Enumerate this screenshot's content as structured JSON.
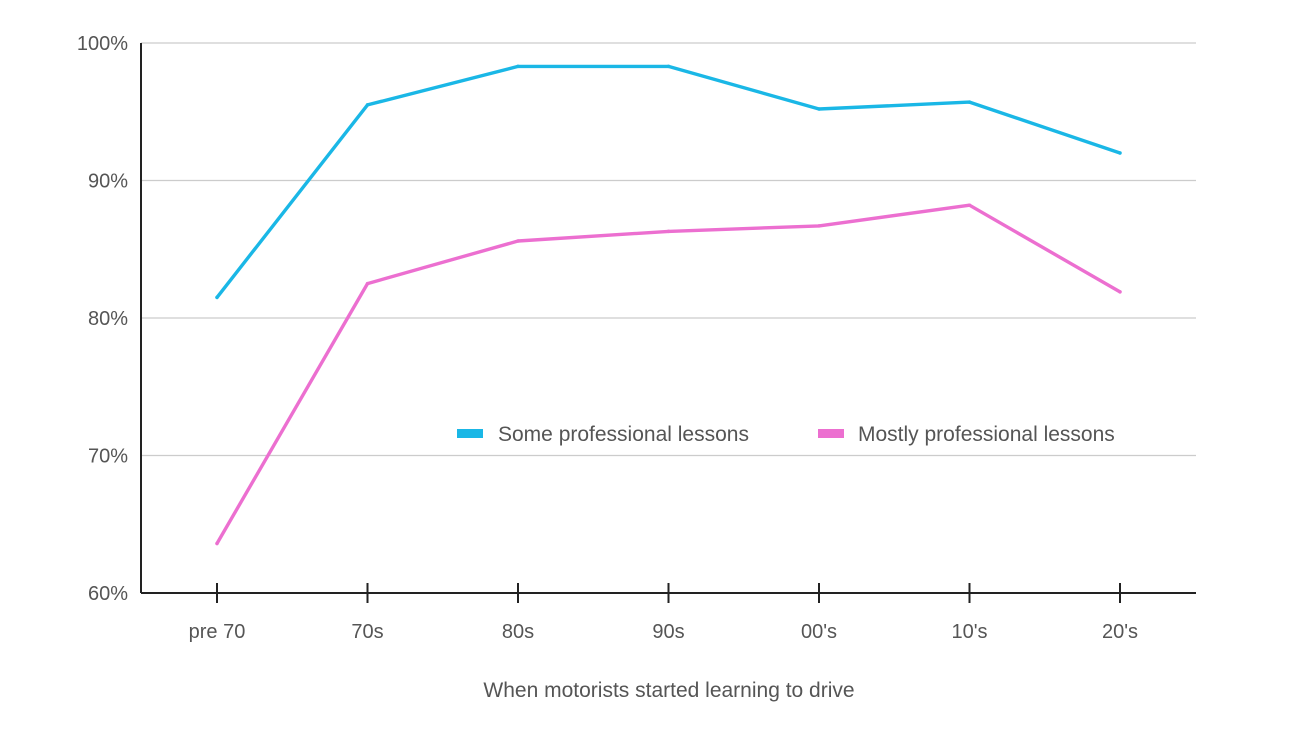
{
  "chart_data": {
    "type": "line",
    "title": "",
    "xlabel": "When motorists started learning to drive",
    "ylabel": "",
    "categories": [
      "pre 70",
      "70s",
      "80s",
      "90s",
      "00's",
      "10's",
      "20's"
    ],
    "y_ticks": [
      60,
      70,
      80,
      90,
      100
    ],
    "y_tick_labels": [
      "60%",
      "70%",
      "80%",
      "90%",
      "100%"
    ],
    "ylim": [
      60,
      100
    ],
    "grid": true,
    "legend_position": "center-right",
    "series": [
      {
        "name": "Some professional lessons",
        "color": "#1ab7e6",
        "values": [
          81.5,
          95.5,
          98.3,
          98.3,
          95.2,
          95.7,
          92.0
        ]
      },
      {
        "name": "Mostly professional lessons",
        "color": "#ec6fd0",
        "values": [
          63.6,
          82.5,
          85.6,
          86.3,
          86.7,
          88.2,
          81.9
        ]
      }
    ]
  }
}
